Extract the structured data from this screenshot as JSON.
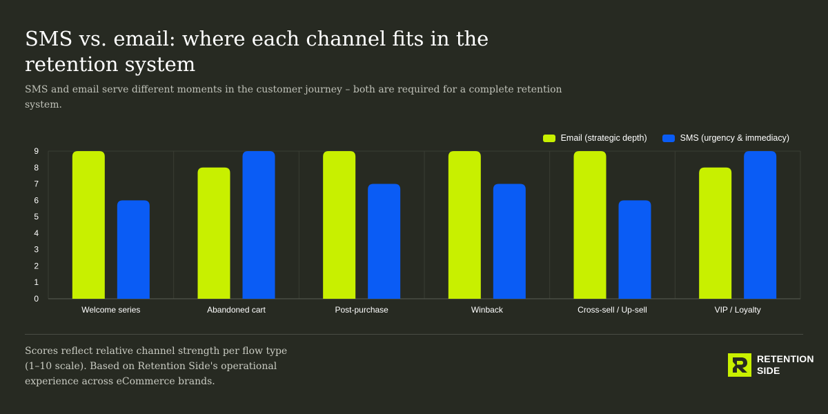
{
  "header": {
    "title": "SMS vs. email: where each channel fits in the retention system",
    "subtitle": "SMS and email serve different moments in the customer journey – both are required for a complete retention system."
  },
  "legend": {
    "email_label": "Email (strategic depth)",
    "sms_label": "SMS (urgency & immediacy)"
  },
  "footer": {
    "note": "Scores reflect relative channel strength per flow type (1–10 scale). Based on Retention Side's operational experience across eCommerce brands.",
    "brand_line1": "RETENTION",
    "brand_line2": "SIDE"
  },
  "colors": {
    "background": "#272a22",
    "email": "#c8f000",
    "sms": "#0a5cf5",
    "grid": "#3a3d34"
  },
  "chart_data": {
    "type": "bar",
    "categories": [
      "Welcome series",
      "Abandoned cart",
      "Post-purchase",
      "Winback",
      "Cross-sell / Up-sell",
      "VIP / Loyalty"
    ],
    "series": [
      {
        "name": "Email (strategic depth)",
        "values": [
          9,
          8,
          9,
          9,
          9,
          8
        ]
      },
      {
        "name": "SMS (urgency & immediacy)",
        "values": [
          6,
          9,
          7,
          7,
          6,
          9
        ]
      }
    ],
    "ylim": [
      0,
      9
    ],
    "yticks": [
      0,
      1,
      2,
      3,
      4,
      5,
      6,
      7,
      8,
      9
    ],
    "grid": "vertical category separators",
    "legend_position": "top-right"
  }
}
